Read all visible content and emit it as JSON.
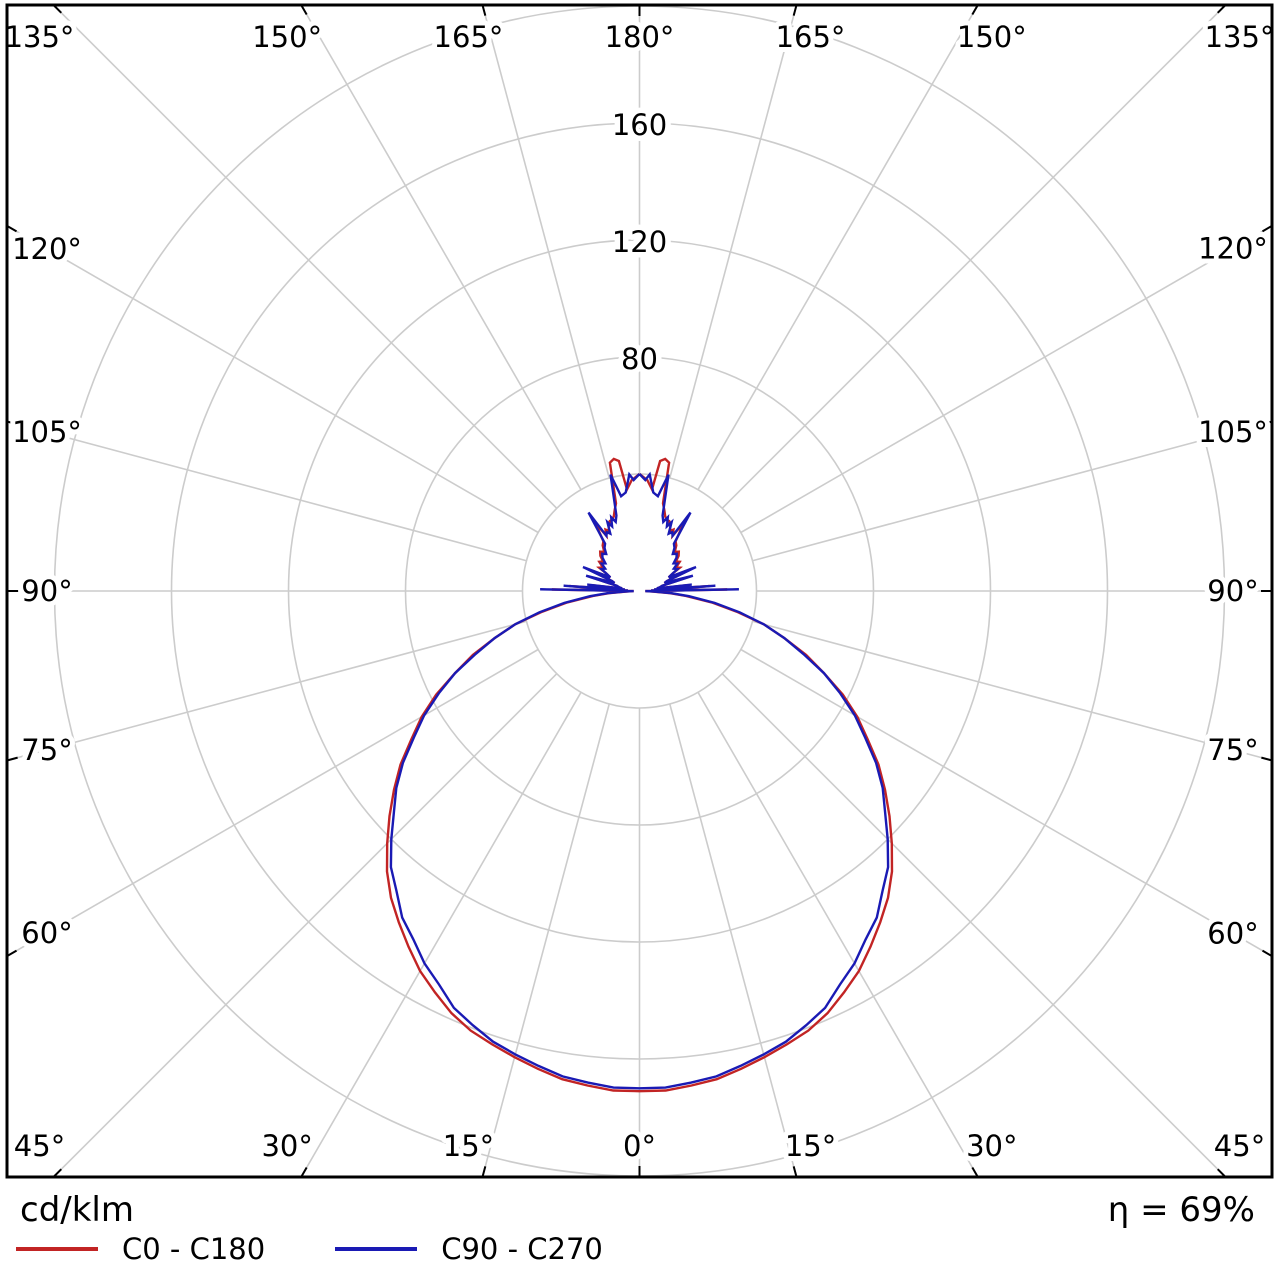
{
  "footer": {
    "units_label": "cd/klm",
    "efficiency_label": "η = 69%"
  },
  "legend": {
    "items": [
      {
        "label": "C0 - C180",
        "color": "#c22424"
      },
      {
        "label": "C90 - C270",
        "color": "#1a1ab4"
      }
    ]
  },
  "chart_data": {
    "type": "line",
    "variant": "polar-photometric-intensity-curve",
    "units": "cd/klm",
    "efficiency": "69%",
    "angle_unit": "deg",
    "angle_zero_direction": "down",
    "angle_tick_step_deg": 15,
    "angle_labels": [
      "0°",
      "15°",
      "30°",
      "45°",
      "60°",
      "75°",
      "90°",
      "105°",
      "120°",
      "135°",
      "150°",
      "165°",
      "180°"
    ],
    "radial_ticks": [
      40,
      80,
      120,
      160,
      200
    ],
    "radial_tick_labels": [
      "80",
      "120",
      "160"
    ],
    "grid_color": "#cccccc",
    "border_color": "#000000",
    "legend_title": "cd/klm",
    "series": [
      {
        "name": "C0 - C180",
        "color": "#c22424",
        "mirrored": true,
        "points": [
          [
            0,
            171
          ],
          [
            3,
            171
          ],
          [
            6,
            170
          ],
          [
            9,
            169
          ],
          [
            12,
            167
          ],
          [
            15,
            165
          ],
          [
            18,
            163
          ],
          [
            21,
            161
          ],
          [
            24,
            158
          ],
          [
            27,
            154
          ],
          [
            30,
            150
          ],
          [
            33,
            145
          ],
          [
            36,
            140
          ],
          [
            39,
            135
          ],
          [
            42,
            129
          ],
          [
            45,
            122
          ],
          [
            48,
            115
          ],
          [
            51,
            108
          ],
          [
            54,
            101
          ],
          [
            57,
            93
          ],
          [
            60,
            86
          ],
          [
            63,
            78
          ],
          [
            66,
            69
          ],
          [
            69,
            61
          ],
          [
            72,
            52
          ],
          [
            75,
            44
          ],
          [
            78,
            34
          ],
          [
            81,
            25
          ],
          [
            84,
            16
          ],
          [
            86,
            10
          ],
          [
            88,
            4
          ],
          [
            89.5,
            2
          ],
          [
            91,
            30
          ],
          [
            92.5,
            4
          ],
          [
            94,
            24
          ],
          [
            95.5,
            5
          ],
          [
            97,
            16
          ],
          [
            98.5,
            6
          ],
          [
            100,
            7
          ],
          [
            103,
            8
          ],
          [
            106,
            17
          ],
          [
            108,
            9
          ],
          [
            110,
            10
          ],
          [
            113,
            19
          ],
          [
            115,
            11
          ],
          [
            118,
            13
          ],
          [
            120,
            16
          ],
          [
            123,
            15
          ],
          [
            126,
            17
          ],
          [
            129,
            16
          ],
          [
            132,
            18
          ],
          [
            135,
            19
          ],
          [
            138,
            18
          ],
          [
            141,
            20
          ],
          [
            144,
            21
          ],
          [
            147,
            28
          ],
          [
            149,
            22
          ],
          [
            151,
            24
          ],
          [
            153,
            23
          ],
          [
            155,
            25
          ],
          [
            157,
            26
          ],
          [
            159,
            26
          ],
          [
            161,
            27
          ],
          [
            163,
            29
          ],
          [
            165,
            31
          ],
          [
            167,
            45
          ],
          [
            169,
            46
          ],
          [
            171,
            45
          ],
          [
            173,
            35
          ],
          [
            176,
            38
          ],
          [
            180,
            40
          ]
        ]
      },
      {
        "name": "C90 - C270",
        "color": "#1a1ab4",
        "mirrored": true,
        "points": [
          [
            0,
            170
          ],
          [
            3,
            170
          ],
          [
            6,
            169
          ],
          [
            9,
            168
          ],
          [
            12,
            166
          ],
          [
            15,
            164
          ],
          [
            18,
            162
          ],
          [
            21,
            159
          ],
          [
            24,
            156
          ],
          [
            27,
            151
          ],
          [
            30,
            147
          ],
          [
            33,
            142
          ],
          [
            36,
            138
          ],
          [
            39,
            132
          ],
          [
            42,
            127
          ],
          [
            45,
            120
          ],
          [
            48,
            113
          ],
          [
            51,
            107
          ],
          [
            54,
            100
          ],
          [
            57,
            92
          ],
          [
            60,
            85
          ],
          [
            63,
            77
          ],
          [
            66,
            69
          ],
          [
            69,
            60
          ],
          [
            72,
            52
          ],
          [
            75,
            44
          ],
          [
            78,
            35
          ],
          [
            81,
            26
          ],
          [
            84,
            17
          ],
          [
            86,
            11
          ],
          [
            88,
            5
          ],
          [
            89.5,
            2
          ],
          [
            91,
            34
          ],
          [
            92.5,
            4
          ],
          [
            94,
            26
          ],
          [
            95.5,
            5
          ],
          [
            97,
            18
          ],
          [
            98.5,
            6
          ],
          [
            100,
            7
          ],
          [
            103,
            8
          ],
          [
            106,
            19
          ],
          [
            108,
            9
          ],
          [
            110,
            10
          ],
          [
            113,
            21
          ],
          [
            115,
            11
          ],
          [
            118,
            13
          ],
          [
            120,
            15
          ],
          [
            123,
            14
          ],
          [
            126,
            16
          ],
          [
            129,
            15
          ],
          [
            132,
            17
          ],
          [
            135,
            18
          ],
          [
            138,
            17
          ],
          [
            141,
            19
          ],
          [
            144,
            20
          ],
          [
            147,
            32
          ],
          [
            149,
            22
          ],
          [
            151,
            23
          ],
          [
            153,
            22
          ],
          [
            155,
            26
          ],
          [
            157,
            24
          ],
          [
            159,
            27
          ],
          [
            161,
            25
          ],
          [
            163,
            27
          ],
          [
            166,
            41
          ],
          [
            169,
            33
          ],
          [
            172,
            34
          ],
          [
            175,
            40
          ],
          [
            177,
            38
          ],
          [
            180,
            40
          ]
        ]
      }
    ]
  }
}
